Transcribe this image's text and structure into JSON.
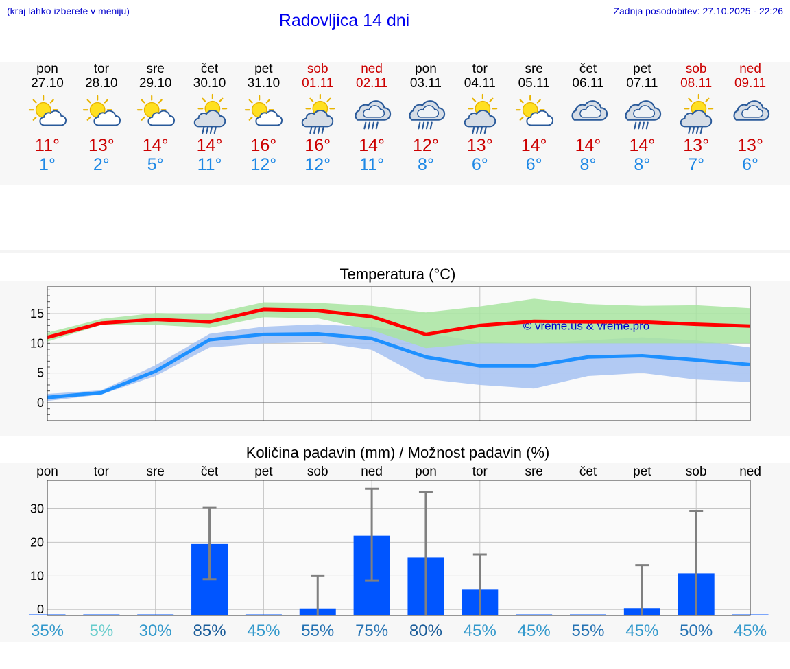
{
  "header": {
    "hint": "(kraj lahko izberete v meniju)",
    "title": "Radovljica 14 dni",
    "updated": "Zadnja posodobitev: 27.10.2025 - 22:26"
  },
  "days": [
    {
      "name": "pon",
      "date": "27.10",
      "weekend": false,
      "icon": "sun-cloud-icon",
      "tmax": "11°",
      "tmin": "1°"
    },
    {
      "name": "tor",
      "date": "28.10",
      "weekend": false,
      "icon": "sun-cloud-icon",
      "tmax": "13°",
      "tmin": "2°"
    },
    {
      "name": "sre",
      "date": "29.10",
      "weekend": false,
      "icon": "sun-cloud-icon",
      "tmax": "14°",
      "tmin": "5°"
    },
    {
      "name": "čet",
      "date": "30.10",
      "weekend": false,
      "icon": "sun-cloud-rain-icon",
      "tmax": "14°",
      "tmin": "11°"
    },
    {
      "name": "pet",
      "date": "31.10",
      "weekend": false,
      "icon": "sun-cloud-icon",
      "tmax": "16°",
      "tmin": "12°"
    },
    {
      "name": "sob",
      "date": "01.11",
      "weekend": true,
      "icon": "sun-cloud-rain-icon",
      "tmax": "16°",
      "tmin": "12°"
    },
    {
      "name": "ned",
      "date": "02.11",
      "weekend": true,
      "icon": "cloud-rain-icon",
      "tmax": "14°",
      "tmin": "11°"
    },
    {
      "name": "pon",
      "date": "03.11",
      "weekend": false,
      "icon": "cloud-rain-icon",
      "tmax": "12°",
      "tmin": "8°"
    },
    {
      "name": "tor",
      "date": "04.11",
      "weekend": false,
      "icon": "sun-cloud-rain-icon",
      "tmax": "13°",
      "tmin": "6°"
    },
    {
      "name": "sre",
      "date": "05.11",
      "weekend": false,
      "icon": "sun-cloud-icon",
      "tmax": "14°",
      "tmin": "6°"
    },
    {
      "name": "čet",
      "date": "06.11",
      "weekend": false,
      "icon": "cloud-icon",
      "tmax": "14°",
      "tmin": "8°"
    },
    {
      "name": "pet",
      "date": "07.11",
      "weekend": false,
      "icon": "cloud-rain-icon",
      "tmax": "14°",
      "tmin": "8°"
    },
    {
      "name": "sob",
      "date": "08.11",
      "weekend": true,
      "icon": "sun-cloud-rain-icon",
      "tmax": "13°",
      "tmin": "7°"
    },
    {
      "name": "ned",
      "date": "09.11",
      "weekend": true,
      "icon": "cloud-icon",
      "tmax": "13°",
      "tmin": "6°"
    }
  ],
  "colors": {
    "tmax_line": "#ff0000",
    "tmin_line": "#1e90ff",
    "tmax_band": "#a8e4a0",
    "tmin_band": "#aac4f2",
    "bar": "#0055ff",
    "error_bar": "#808080",
    "weekend": "#cc0000",
    "watermark": "#0000cc"
  },
  "chart_data": [
    {
      "type": "line",
      "title": "Temperatura (°C)",
      "watermark": "© vreme.us & vreme.pro",
      "ylim": [
        -3,
        19.5
      ],
      "yticks": [
        0,
        5,
        10,
        15
      ],
      "grid": true,
      "series": [
        {
          "key": "tmax",
          "values": [
            11,
            13.4,
            14,
            13.6,
            15.7,
            15.5,
            14.5,
            11.5,
            13,
            13.7,
            13.6,
            13.6,
            13.2,
            12.9
          ],
          "band_low": [
            10.3,
            13.1,
            13.1,
            12.6,
            14.4,
            14.2,
            12.2,
            9.2,
            10,
            10,
            10,
            10,
            10,
            10
          ],
          "band_high": [
            11.8,
            14.1,
            15.1,
            14.9,
            16.9,
            16.8,
            16.3,
            15.2,
            16.2,
            17.5,
            16.6,
            16.3,
            16.4,
            15.9
          ]
        },
        {
          "key": "tmin",
          "values": [
            0.9,
            1.7,
            5.3,
            10.6,
            11.5,
            11.6,
            10.8,
            7.7,
            6.2,
            6.2,
            7.7,
            7.9,
            7.2,
            6.4
          ],
          "band_low": [
            0.3,
            1.4,
            4.5,
            9.3,
            10,
            10.2,
            8.9,
            4,
            3,
            2.4,
            4.5,
            5,
            3.9,
            3.5
          ],
          "band_high": [
            1.5,
            2.1,
            6.3,
            11.6,
            12.8,
            13.2,
            12.7,
            11.8,
            10.2,
            10,
            10.5,
            11,
            10.5,
            9.3
          ]
        }
      ]
    },
    {
      "type": "bar",
      "title": "Količina padavin (mm) / Možnost padavin (%)",
      "categories": [
        "pon",
        "tor",
        "sre",
        "čet",
        "pet",
        "sob",
        "ned",
        "pon",
        "tor",
        "sre",
        "čet",
        "pet",
        "sob",
        "ned"
      ],
      "values": [
        0,
        0,
        0,
        19.5,
        0,
        0.3,
        22,
        15.5,
        5.9,
        0,
        0,
        0.4,
        10.8,
        0
      ],
      "error_low": [
        0,
        0,
        0,
        8.9,
        0,
        0,
        8.6,
        0,
        0,
        0,
        0,
        0,
        0,
        0
      ],
      "error_high": [
        0,
        0,
        0,
        30.3,
        0,
        10,
        36,
        35.1,
        16.4,
        0,
        0,
        13.2,
        29.4,
        0
      ],
      "ylim": [
        -1.8,
        38.5
      ],
      "yticks": [
        0,
        10,
        20,
        30
      ],
      "probability": [
        "35%",
        "5%",
        "30%",
        "85%",
        "45%",
        "55%",
        "75%",
        "80%",
        "45%",
        "45%",
        "55%",
        "45%",
        "50%",
        "45%"
      ],
      "probability_colors": [
        "#3399cc",
        "#66cccc",
        "#3399cc",
        "#1a5c99",
        "#3399cc",
        "#2673b3",
        "#2673b3",
        "#1a5c99",
        "#3399cc",
        "#3399cc",
        "#2673b3",
        "#3399cc",
        "#2673b3",
        "#3399cc"
      ]
    }
  ]
}
